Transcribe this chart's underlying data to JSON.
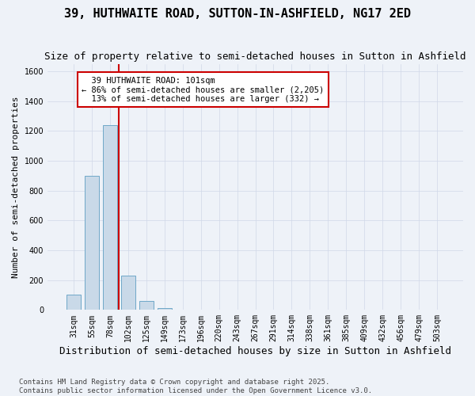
{
  "title": "39, HUTHWAITE ROAD, SUTTON-IN-ASHFIELD, NG17 2ED",
  "subtitle": "Size of property relative to semi-detached houses in Sutton in Ashfield",
  "xlabel": "Distribution of semi-detached houses by size in Sutton in Ashfield",
  "ylabel": "Number of semi-detached properties",
  "bar_color": "#c9d9e8",
  "bar_edge_color": "#6fa8c8",
  "grid_color": "#d0d8e8",
  "background_color": "#eef2f8",
  "bins": [
    "31sqm",
    "55sqm",
    "78sqm",
    "102sqm",
    "125sqm",
    "149sqm",
    "173sqm",
    "196sqm",
    "220sqm",
    "243sqm",
    "267sqm",
    "291sqm",
    "314sqm",
    "338sqm",
    "361sqm",
    "385sqm",
    "409sqm",
    "432sqm",
    "456sqm",
    "479sqm",
    "503sqm"
  ],
  "values": [
    100,
    900,
    1240,
    230,
    60,
    10,
    0,
    0,
    0,
    0,
    0,
    0,
    0,
    0,
    0,
    0,
    0,
    0,
    0,
    0,
    0
  ],
  "ylim": [
    0,
    1650
  ],
  "yticks": [
    0,
    200,
    400,
    600,
    800,
    1000,
    1200,
    1400,
    1600
  ],
  "vline_x": 2.5,
  "subject_label": "39 HUTHWAITE ROAD: 101sqm",
  "pct_smaller": 86,
  "count_smaller": 2205,
  "pct_larger": 13,
  "count_larger": 332,
  "annotation_box_color": "#cc0000",
  "vline_color": "#cc0000",
  "footer1": "Contains HM Land Registry data © Crown copyright and database right 2025.",
  "footer2": "Contains public sector information licensed under the Open Government Licence v3.0.",
  "title_fontsize": 11,
  "subtitle_fontsize": 9,
  "xlabel_fontsize": 9,
  "ylabel_fontsize": 8,
  "tick_fontsize": 7,
  "annotation_fontsize": 7.5,
  "footer_fontsize": 6.5
}
